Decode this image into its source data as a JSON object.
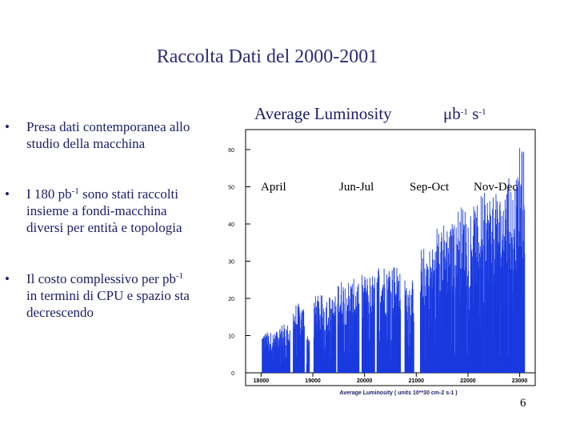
{
  "slide": {
    "title": "Raccolta Dati del 2000-2001",
    "page_number": "6"
  },
  "bullets": [
    {
      "marker": "•",
      "line1": "Presa dati contemporanea allo",
      "line2": "studio della macchina",
      "line3": ""
    },
    {
      "marker": "•",
      "pre": "I 180 pb",
      "sup": "-1",
      "post": " sono stati raccolti",
      "line2": "insieme a fondi-macchina",
      "line3": "diversi per entità e topologia"
    },
    {
      "marker": "•",
      "pre": "Il costo complessivo per pb",
      "sup": "-1",
      "post": "",
      "line2": "in termini di CPU e spazio  sta",
      "line3": "decrescendo"
    }
  ],
  "chart_header": {
    "label": "Average Luminosity",
    "unit_mu": "μb",
    "unit_sup1": "-1",
    "unit_s": " s",
    "unit_sup2": "-1"
  },
  "periods": [
    "April",
    "Jun-Jul",
    "Sep-Oct",
    "Nov-Dec"
  ],
  "chart_data": {
    "type": "bar",
    "xlabel": "Average Luminosity  ( units 10**30 cm-2 s-1 )",
    "ylabel": "",
    "xlim": [
      17700,
      23300
    ],
    "ylim": [
      0,
      63
    ],
    "xticks": [
      18000,
      19000,
      20000,
      21000,
      22000,
      23000
    ],
    "yticks": [
      0,
      10,
      20,
      30,
      40,
      50,
      60
    ],
    "grid": false,
    "color": "#1a3adf",
    "series": [
      {
        "x_start": 18020,
        "x_end": 23100,
        "segments": [
          {
            "from": 18020,
            "to": 18300,
            "level": 10
          },
          {
            "from": 18300,
            "to": 18560,
            "level": 12
          },
          {
            "from": 18620,
            "to": 18840,
            "level": 17
          },
          {
            "from": 18880,
            "to": 18940,
            "level": 10
          },
          {
            "from": 19020,
            "to": 19450,
            "level": 19
          },
          {
            "from": 19480,
            "to": 19900,
            "level": 23
          },
          {
            "from": 19950,
            "to": 20200,
            "level": 24
          },
          {
            "from": 20240,
            "to": 20700,
            "level": 27
          },
          {
            "from": 20780,
            "to": 20960,
            "level": 23
          },
          {
            "from": 21080,
            "to": 21400,
            "level": 31
          },
          {
            "from": 21400,
            "to": 21800,
            "level": 37
          },
          {
            "from": 21800,
            "to": 22200,
            "level": 41
          },
          {
            "from": 22200,
            "to": 22700,
            "level": 44
          },
          {
            "from": 22700,
            "to": 23000,
            "level": 48
          },
          {
            "from": 23000,
            "to": 23100,
            "level": 55
          }
        ]
      }
    ]
  }
}
